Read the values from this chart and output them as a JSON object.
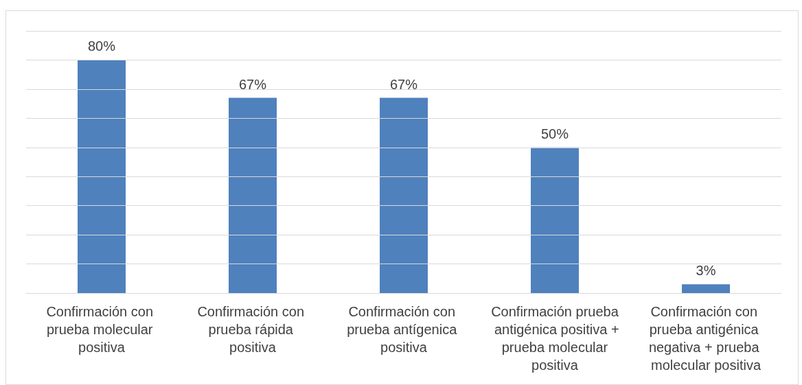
{
  "chart_data": {
    "type": "bar",
    "categories": [
      "Confirmación con prueba molecular positiva",
      "Confirmación con prueba rápida positiva",
      "Confirmación con prueba antígenica positiva",
      "Confirmación prueba antigénica positiva + prueba molecular positiva",
      "Confirmación con prueba antigénica negativa + prueba molecular positiva"
    ],
    "values": [
      80,
      67,
      67,
      50,
      3
    ],
    "value_labels": [
      "80%",
      "67%",
      "67%",
      "50%",
      "3%"
    ],
    "color": "#4f81bd",
    "ylim": [
      0,
      90
    ],
    "yticks": [
      {
        "value": 0,
        "label": null
      },
      {
        "value": 10,
        "label": null
      },
      {
        "value": 20,
        "label": null
      },
      {
        "value": 30,
        "label": null
      },
      {
        "value": 40,
        "label": null
      },
      {
        "value": 50,
        "label": null
      },
      {
        "value": 60,
        "label": null
      },
      {
        "value": 70,
        "label": null
      },
      {
        "value": 80,
        "label": null
      },
      {
        "value": 90,
        "label": null
      }
    ],
    "grid": "y",
    "tick_labels": "x"
  }
}
